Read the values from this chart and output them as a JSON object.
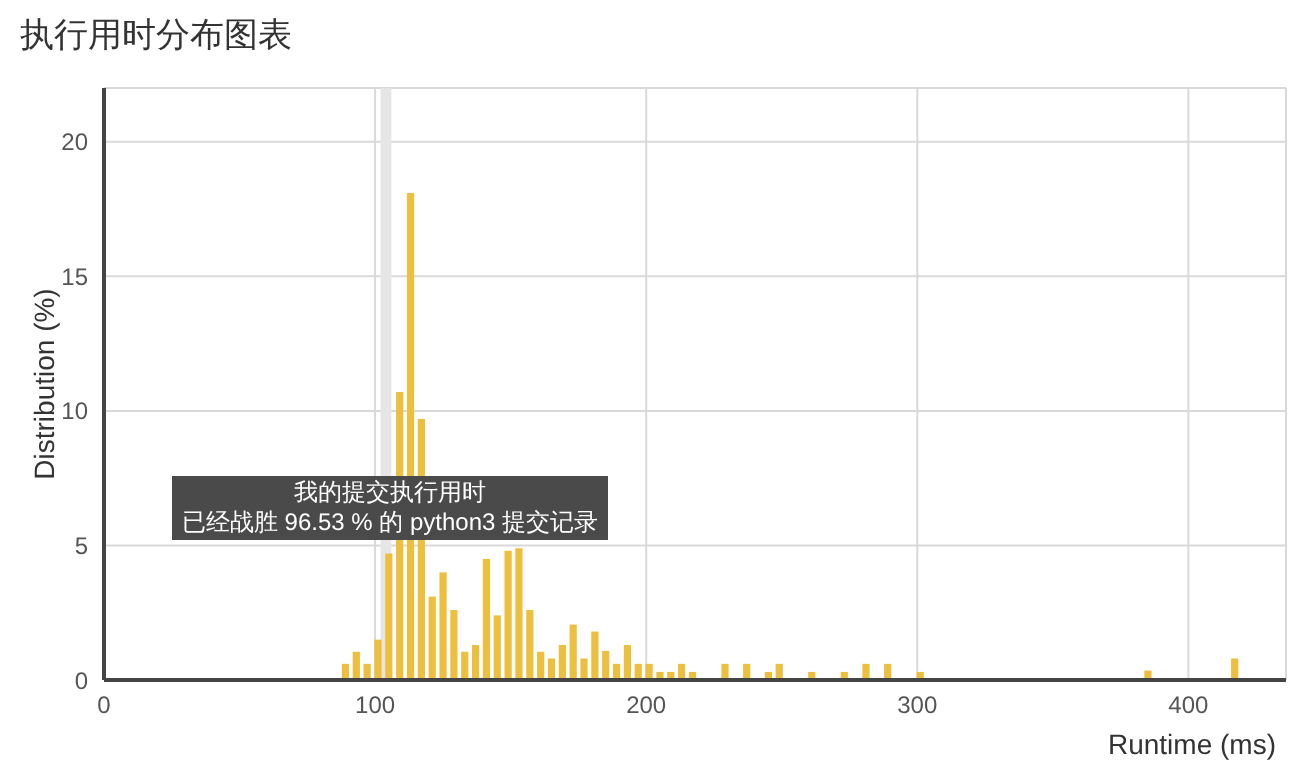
{
  "chart_data": {
    "type": "bar",
    "title": "执行用时分布图表",
    "xlabel": "Runtime (ms)",
    "ylabel": "Distribution (%)",
    "x": [
      89,
      93,
      97,
      101,
      105,
      109,
      113,
      117,
      121,
      125,
      129,
      133,
      137,
      141,
      145,
      149,
      153,
      157,
      161,
      165,
      169,
      173,
      177,
      181,
      185,
      189,
      193,
      197,
      201,
      205,
      209,
      213,
      217,
      229,
      237,
      245,
      249,
      261,
      273,
      281,
      289,
      301,
      385,
      417
    ],
    "values": [
      0.6,
      1.05,
      0.6,
      1.5,
      4.7,
      10.7,
      18.1,
      9.7,
      3.1,
      4.0,
      2.6,
      1.05,
      1.3,
      4.5,
      2.4,
      4.8,
      4.9,
      2.6,
      1.05,
      0.8,
      1.3,
      2.06,
      0.8,
      1.8,
      1.08,
      0.6,
      1.3,
      0.6,
      0.6,
      0.3,
      0.3,
      0.6,
      0.3,
      0.6,
      0.6,
      0.3,
      0.6,
      0.3,
      0.3,
      0.6,
      0.6,
      0.3,
      0.35,
      0.8
    ],
    "color": "#ecbf3f",
    "xlim": [
      0,
      436
    ],
    "xticks": [
      0,
      100,
      200,
      300,
      400
    ],
    "ylim": [
      0,
      22
    ],
    "yticks": [
      0,
      5,
      10,
      15,
      20
    ],
    "grid": true,
    "bands": [
      {
        "axis": "x",
        "from": 102,
        "to": 106,
        "color": "#e6e6e6"
      }
    ],
    "annotations": [
      "我的提交执行用时",
      "已经战胜 96.53 % 的 python3 提交记录"
    ]
  }
}
